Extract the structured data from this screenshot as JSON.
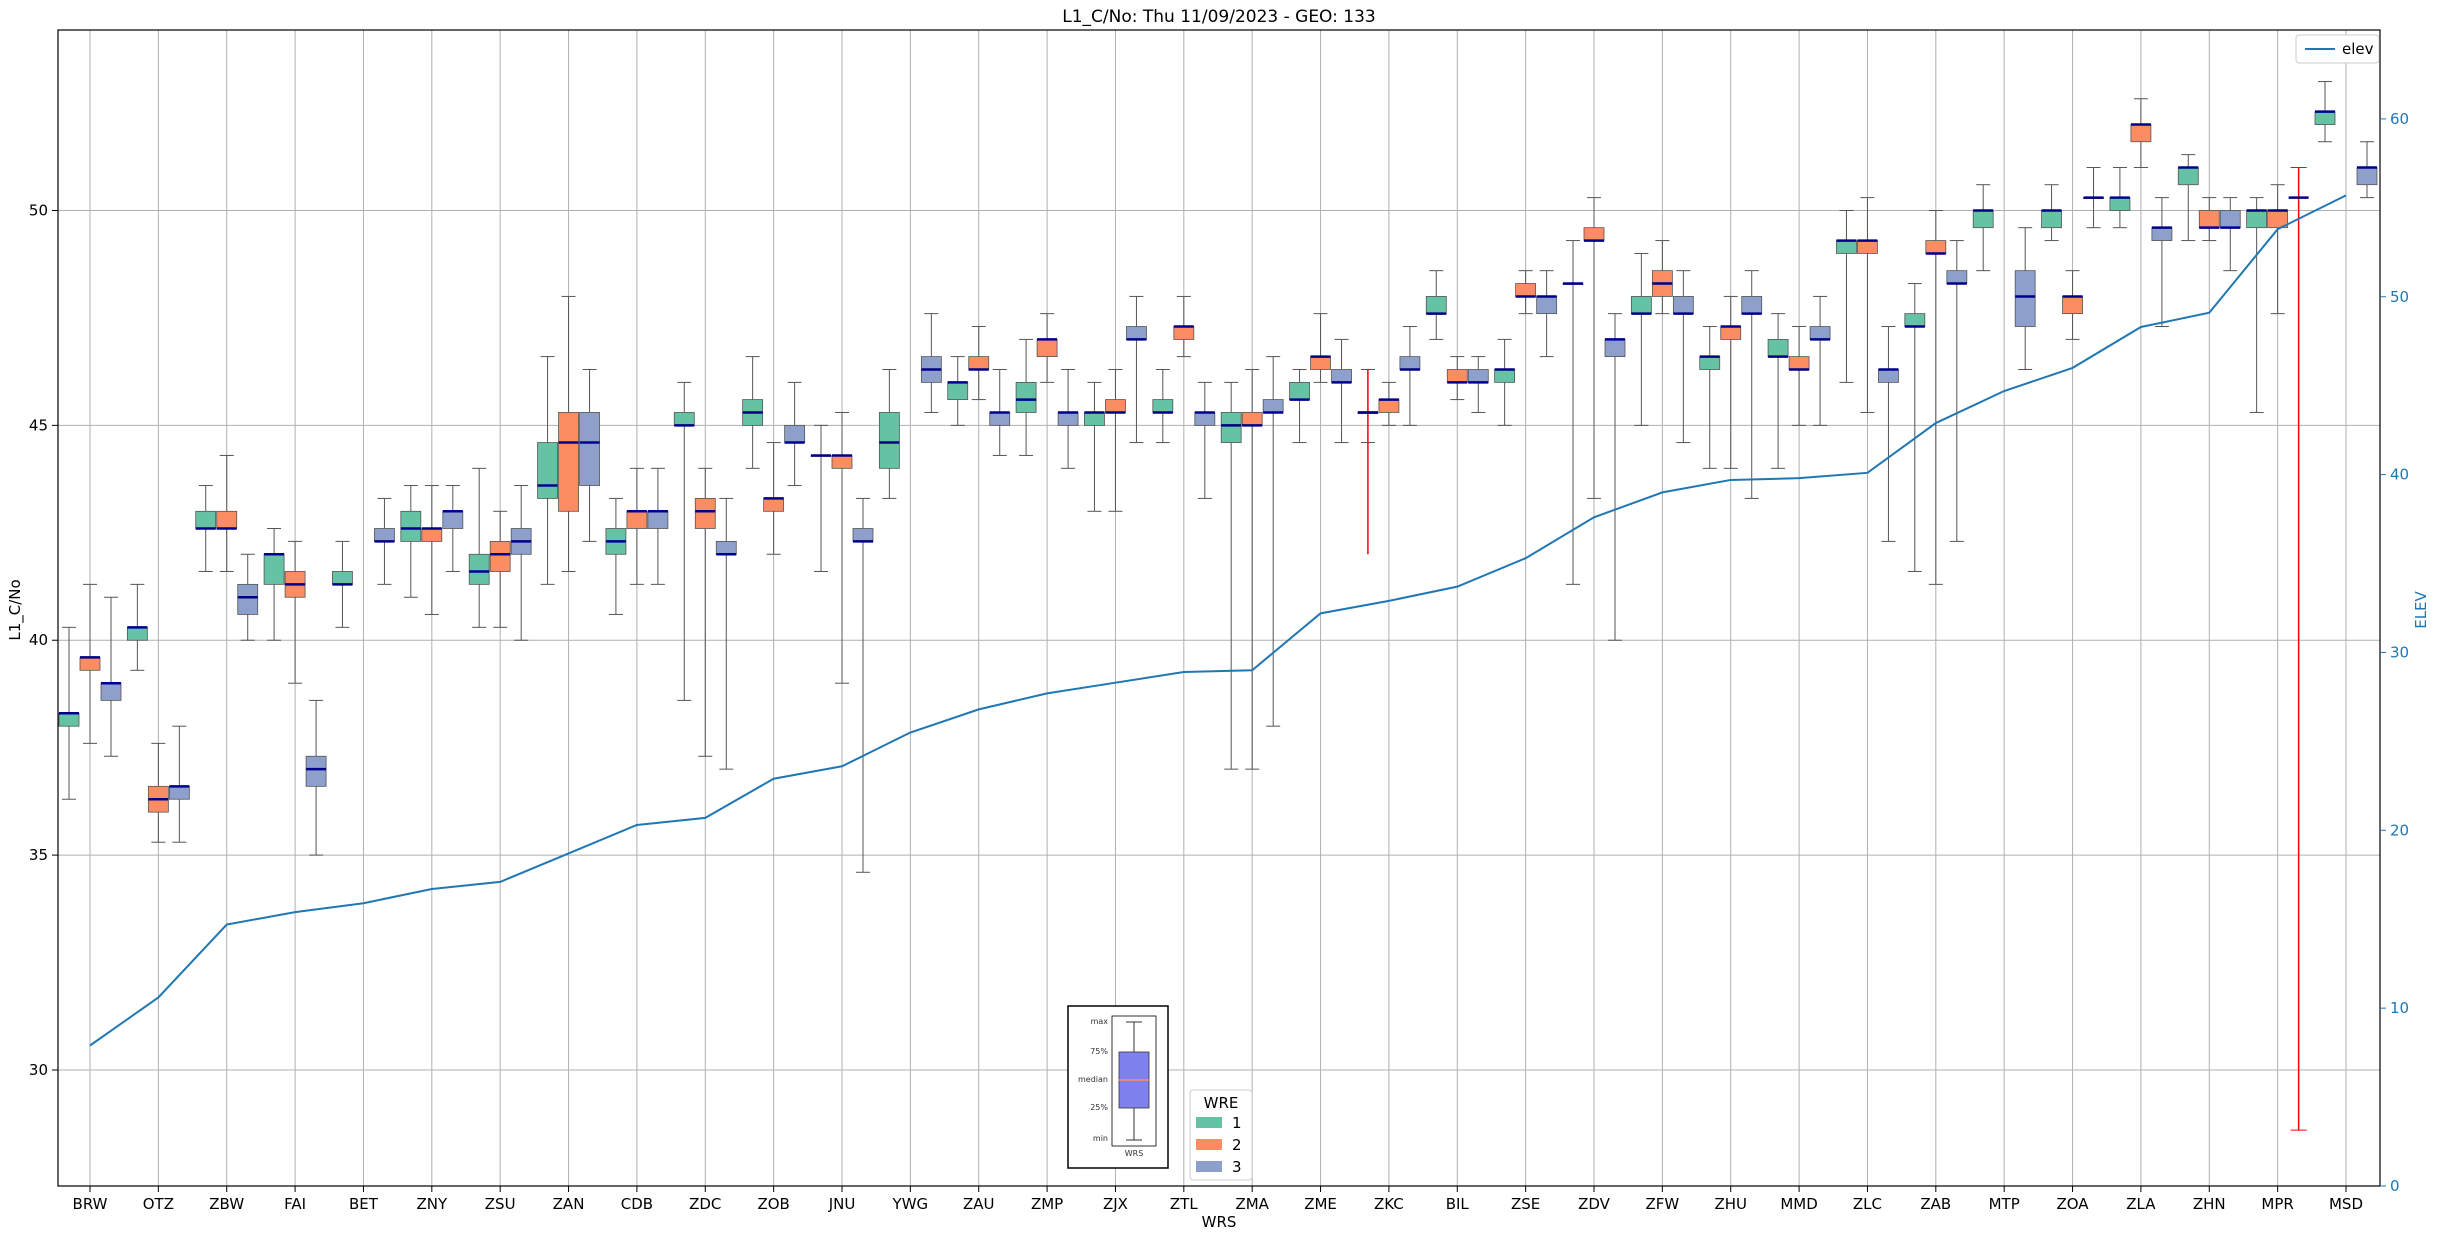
{
  "chart_data": {
    "type": "box",
    "title": "L1_C/No: Thu 11/09/2023 - GEO: 133",
    "xlabel": "WRS",
    "ylabel": "L1_C/No",
    "ylabel_right": "ELEV",
    "ylim": [
      27.3,
      54.2
    ],
    "ylim_right": [
      0,
      65
    ],
    "yticks": [
      30,
      35,
      40,
      45,
      50
    ],
    "yticks_right": [
      0,
      10,
      20,
      30,
      40,
      50,
      60
    ],
    "grid": true,
    "legend_line": {
      "name": "elev",
      "color": "#1f77b4",
      "placement": "top-right"
    },
    "legend_wre": {
      "title": "WRE",
      "entries": [
        {
          "label": "1",
          "color": "#66c2a5"
        },
        {
          "label": "2",
          "color": "#fc8d62"
        },
        {
          "label": "3",
          "color": "#8da0cb"
        }
      ],
      "placement": "bottom-center"
    },
    "inset": {
      "labels": [
        "max",
        "75%",
        "median",
        "25%",
        "min"
      ],
      "xlabel": "WRS"
    },
    "categories": [
      "BRW",
      "OTZ",
      "ZBW",
      "FAI",
      "BET",
      "ZNY",
      "ZSU",
      "ZAN",
      "CDB",
      "ZDC",
      "ZOB",
      "JNU",
      "YWG",
      "ZAU",
      "ZMP",
      "ZJX",
      "ZTL",
      "ZMA",
      "ZME",
      "ZKC",
      "BIL",
      "ZSE",
      "ZDV",
      "ZFW",
      "ZHU",
      "MMD",
      "ZLC",
      "ZAB",
      "MTP",
      "ZOA",
      "ZLA",
      "ZHN",
      "MPR",
      "MSD"
    ],
    "elev": [
      7.9,
      10.6,
      14.7,
      15.4,
      15.9,
      16.7,
      17.1,
      18.7,
      20.3,
      20.7,
      22.9,
      23.6,
      25.5,
      26.8,
      27.7,
      28.3,
      28.9,
      29.0,
      32.2,
      32.9,
      33.7,
      35.3,
      37.6,
      39.0,
      39.7,
      39.8,
      40.1,
      42.9,
      44.7,
      46.0,
      48.3,
      49.1,
      53.8,
      55.7
    ],
    "series": [
      {
        "name": "1",
        "boxes": [
          {
            "cat": "BRW",
            "min": 36.3,
            "q1": 38.0,
            "med": 38.3,
            "q3": 38.3,
            "max": 40.3
          },
          {
            "cat": "OTZ",
            "min": 39.3,
            "q1": 40.0,
            "med": 40.3,
            "q3": 40.3,
            "max": 41.3
          },
          {
            "cat": "ZBW",
            "min": 41.6,
            "q1": 42.6,
            "med": 42.6,
            "q3": 43.0,
            "max": 43.6
          },
          {
            "cat": "FAI",
            "min": 40.0,
            "q1": 41.3,
            "med": 42.0,
            "q3": 42.0,
            "max": 42.6
          },
          {
            "cat": "BET",
            "min": 40.3,
            "q1": 41.3,
            "med": 41.3,
            "q3": 41.6,
            "max": 42.3
          },
          {
            "cat": "ZNY",
            "min": 41.0,
            "q1": 42.3,
            "med": 42.6,
            "q3": 43.0,
            "max": 43.6
          },
          {
            "cat": "ZSU",
            "min": 40.3,
            "q1": 41.3,
            "med": 41.6,
            "q3": 42.0,
            "max": 44.0
          },
          {
            "cat": "ZAN",
            "min": 41.3,
            "q1": 43.3,
            "med": 43.6,
            "q3": 44.6,
            "max": 46.6
          },
          {
            "cat": "CDB",
            "min": 40.6,
            "q1": 42.0,
            "med": 42.3,
            "q3": 42.6,
            "max": 43.3
          },
          {
            "cat": "ZDC",
            "min": 38.6,
            "q1": 45.0,
            "med": 45.0,
            "q3": 45.3,
            "max": 46.0
          },
          {
            "cat": "ZOB",
            "min": 44.0,
            "q1": 45.0,
            "med": 45.3,
            "q3": 45.6,
            "max": 46.6
          },
          {
            "cat": "JNU",
            "min": 41.6,
            "q1": 44.3,
            "med": 44.3,
            "q3": 44.3,
            "max": 45.0
          },
          {
            "cat": "YWG",
            "min": 43.3,
            "q1": 44.0,
            "med": 44.6,
            "q3": 45.3,
            "max": 46.3
          },
          {
            "cat": "ZAU",
            "min": 45.0,
            "q1": 45.6,
            "med": 46.0,
            "q3": 46.0,
            "max": 46.6
          },
          {
            "cat": "ZMP",
            "min": 44.3,
            "q1": 45.3,
            "med": 45.6,
            "q3": 46.0,
            "max": 47.0
          },
          {
            "cat": "ZJX",
            "min": 43.0,
            "q1": 45.0,
            "med": 45.3,
            "q3": 45.3,
            "max": 46.0
          },
          {
            "cat": "ZTL",
            "min": 44.6,
            "q1": 45.3,
            "med": 45.3,
            "q3": 45.6,
            "max": 46.3
          },
          {
            "cat": "ZMA",
            "min": 37.0,
            "q1": 44.6,
            "med": 45.0,
            "q3": 45.3,
            "max": 46.0
          },
          {
            "cat": "ZME",
            "min": 44.6,
            "q1": 45.6,
            "med": 45.6,
            "q3": 46.0,
            "max": 46.3
          },
          {
            "cat": "ZKC",
            "min": 44.6,
            "q1": 45.3,
            "med": 45.3,
            "q3": 45.3,
            "max": 46.3
          },
          {
            "cat": "BIL",
            "min": 47.0,
            "q1": 47.6,
            "med": 47.6,
            "q3": 48.0,
            "max": 48.6
          },
          {
            "cat": "ZSE",
            "min": 45.0,
            "q1": 46.0,
            "med": 46.3,
            "q3": 46.3,
            "max": 47.0
          },
          {
            "cat": "ZDV",
            "min": 41.3,
            "q1": 48.3,
            "med": 48.3,
            "q3": 48.3,
            "max": 49.3
          },
          {
            "cat": "ZFW",
            "min": 45.0,
            "q1": 47.6,
            "med": 47.6,
            "q3": 48.0,
            "max": 49.0
          },
          {
            "cat": "ZHU",
            "min": 44.0,
            "q1": 46.3,
            "med": 46.6,
            "q3": 46.6,
            "max": 47.3
          },
          {
            "cat": "MMD",
            "min": 44.0,
            "q1": 46.6,
            "med": 46.6,
            "q3": 47.0,
            "max": 47.6
          },
          {
            "cat": "ZLC",
            "min": 46.0,
            "q1": 49.0,
            "med": 49.3,
            "q3": 49.3,
            "max": 50.0
          },
          {
            "cat": "ZAB",
            "min": 41.6,
            "q1": 47.3,
            "med": 47.3,
            "q3": 47.6,
            "max": 48.3
          },
          {
            "cat": "MTP",
            "min": 48.6,
            "q1": 49.6,
            "med": 50.0,
            "q3": 50.0,
            "max": 50.6
          },
          {
            "cat": "ZOA",
            "min": 49.3,
            "q1": 49.6,
            "med": 50.0,
            "q3": 50.0,
            "max": 50.6
          },
          {
            "cat": "ZLA",
            "min": 49.6,
            "q1": 50.0,
            "med": 50.3,
            "q3": 50.3,
            "max": 51.0
          },
          {
            "cat": "ZHN",
            "min": 49.3,
            "q1": 50.6,
            "med": 51.0,
            "q3": 51.0,
            "max": 51.3
          },
          {
            "cat": "MPR",
            "min": 45.3,
            "q1": 49.6,
            "med": 50.0,
            "q3": 50.0,
            "max": 50.3
          },
          {
            "cat": "MSD",
            "min": 51.6,
            "q1": 52.0,
            "med": 52.3,
            "q3": 52.3,
            "max": 53.0
          }
        ]
      },
      {
        "name": "2",
        "boxes": [
          {
            "cat": "BRW",
            "min": 37.6,
            "q1": 39.3,
            "med": 39.6,
            "q3": 39.6,
            "max": 41.3
          },
          {
            "cat": "OTZ",
            "min": 35.3,
            "q1": 36.0,
            "med": 36.3,
            "q3": 36.6,
            "max": 37.6
          },
          {
            "cat": "ZBW",
            "min": 41.6,
            "q1": 42.6,
            "med": 42.6,
            "q3": 43.0,
            "max": 44.3
          },
          {
            "cat": "FAI",
            "min": 39.0,
            "q1": 41.0,
            "med": 41.3,
            "q3": 41.6,
            "max": 42.3
          },
          {
            "cat": "ZNY",
            "min": 40.6,
            "q1": 42.3,
            "med": 42.6,
            "q3": 42.6,
            "max": 43.6
          },
          {
            "cat": "ZSU",
            "min": 40.3,
            "q1": 41.6,
            "med": 42.0,
            "q3": 42.3,
            "max": 43.0
          },
          {
            "cat": "ZAN",
            "min": 41.6,
            "q1": 43.0,
            "med": 44.6,
            "q3": 45.3,
            "max": 48.0
          },
          {
            "cat": "CDB",
            "min": 41.3,
            "q1": 42.6,
            "med": 43.0,
            "q3": 43.0,
            "max": 44.0
          },
          {
            "cat": "ZDC",
            "min": 37.3,
            "q1": 42.6,
            "med": 43.0,
            "q3": 43.3,
            "max": 44.0
          },
          {
            "cat": "ZOB",
            "min": 42.0,
            "q1": 43.0,
            "med": 43.3,
            "q3": 43.3,
            "max": 44.6
          },
          {
            "cat": "JNU",
            "min": 39.0,
            "q1": 44.0,
            "med": 44.3,
            "q3": 44.3,
            "max": 45.3
          },
          {
            "cat": "ZAU",
            "min": 45.6,
            "q1": 46.3,
            "med": 46.3,
            "q3": 46.6,
            "max": 47.3
          },
          {
            "cat": "ZMP",
            "min": 46.0,
            "q1": 46.6,
            "med": 47.0,
            "q3": 47.0,
            "max": 47.6
          },
          {
            "cat": "ZJX",
            "min": 43.0,
            "q1": 45.3,
            "med": 45.3,
            "q3": 45.6,
            "max": 46.3
          },
          {
            "cat": "ZTL",
            "min": 46.6,
            "q1": 47.0,
            "med": 47.3,
            "q3": 47.3,
            "max": 48.0
          },
          {
            "cat": "ZMA",
            "min": 37.0,
            "q1": 45.0,
            "med": 45.0,
            "q3": 45.3,
            "max": 46.3
          },
          {
            "cat": "ZME",
            "min": 46.0,
            "q1": 46.3,
            "med": 46.6,
            "q3": 46.6,
            "max": 47.6
          },
          {
            "cat": "ZKC",
            "min": 45.0,
            "q1": 45.3,
            "med": 45.6,
            "q3": 45.6,
            "max": 46.0
          },
          {
            "cat": "BIL",
            "min": 45.6,
            "q1": 46.0,
            "med": 46.0,
            "q3": 46.3,
            "max": 46.6
          },
          {
            "cat": "ZSE",
            "min": 47.6,
            "q1": 48.0,
            "med": 48.0,
            "q3": 48.3,
            "max": 48.6
          },
          {
            "cat": "ZDV",
            "min": 43.3,
            "q1": 49.3,
            "med": 49.3,
            "q3": 49.6,
            "max": 50.3
          },
          {
            "cat": "ZFW",
            "min": 47.6,
            "q1": 48.0,
            "med": 48.3,
            "q3": 48.6,
            "max": 49.3
          },
          {
            "cat": "ZHU",
            "min": 44.0,
            "q1": 47.0,
            "med": 47.3,
            "q3": 47.3,
            "max": 48.0
          },
          {
            "cat": "MMD",
            "min": 45.0,
            "q1": 46.3,
            "med": 46.3,
            "q3": 46.6,
            "max": 47.3
          },
          {
            "cat": "ZLC",
            "min": 45.3,
            "q1": 49.0,
            "med": 49.3,
            "q3": 49.3,
            "max": 50.3
          },
          {
            "cat": "ZAB",
            "min": 41.3,
            "q1": 49.0,
            "med": 49.0,
            "q3": 49.3,
            "max": 50.0
          },
          {
            "cat": "ZOA",
            "min": 47.0,
            "q1": 47.6,
            "med": 48.0,
            "q3": 48.0,
            "max": 48.6
          },
          {
            "cat": "ZLA",
            "min": 51.0,
            "q1": 51.6,
            "med": 52.0,
            "q3": 52.0,
            "max": 52.6
          },
          {
            "cat": "ZHN",
            "min": 49.3,
            "q1": 49.6,
            "med": 49.6,
            "q3": 50.0,
            "max": 50.3
          },
          {
            "cat": "MPR",
            "min": 47.6,
            "q1": 49.6,
            "med": 50.0,
            "q3": 50.0,
            "max": 50.6
          },
          {
            "cat": "MPR",
            "min": 28.6,
            "q1": 50.3,
            "med": 50.3,
            "q3": 50.3,
            "max": 51.0,
            "special": true
          }
        ]
      },
      {
        "name": "3",
        "boxes": [
          {
            "cat": "BRW",
            "min": 37.3,
            "q1": 38.6,
            "med": 39.0,
            "q3": 39.0,
            "max": 41.0
          },
          {
            "cat": "OTZ",
            "min": 35.3,
            "q1": 36.3,
            "med": 36.6,
            "q3": 36.6,
            "max": 38.0
          },
          {
            "cat": "ZBW",
            "min": 40.0,
            "q1": 40.6,
            "med": 41.0,
            "q3": 41.3,
            "max": 42.0
          },
          {
            "cat": "FAI",
            "min": 35.0,
            "q1": 36.6,
            "med": 37.0,
            "q3": 37.3,
            "max": 38.6
          },
          {
            "cat": "BET",
            "min": 41.3,
            "q1": 42.3,
            "med": 42.3,
            "q3": 42.6,
            "max": 43.3
          },
          {
            "cat": "ZNY",
            "min": 41.6,
            "q1": 42.6,
            "med": 43.0,
            "q3": 43.0,
            "max": 43.6
          },
          {
            "cat": "ZSU",
            "min": 40.0,
            "q1": 42.0,
            "med": 42.3,
            "q3": 42.6,
            "max": 43.6
          },
          {
            "cat": "ZAN",
            "min": 42.3,
            "q1": 43.6,
            "med": 44.6,
            "q3": 45.3,
            "max": 46.3
          },
          {
            "cat": "CDB",
            "min": 41.3,
            "q1": 42.6,
            "med": 43.0,
            "q3": 43.0,
            "max": 44.0
          },
          {
            "cat": "ZDC",
            "min": 37.0,
            "q1": 42.0,
            "med": 42.0,
            "q3": 42.3,
            "max": 43.3
          },
          {
            "cat": "ZOB",
            "min": 43.6,
            "q1": 44.6,
            "med": 44.6,
            "q3": 45.0,
            "max": 46.0
          },
          {
            "cat": "JNU",
            "min": 34.6,
            "q1": 42.3,
            "med": 42.3,
            "q3": 42.6,
            "max": 43.3
          },
          {
            "cat": "YWG",
            "min": 45.3,
            "q1": 46.0,
            "med": 46.3,
            "q3": 46.6,
            "max": 47.6
          },
          {
            "cat": "ZAU",
            "min": 44.3,
            "q1": 45.0,
            "med": 45.3,
            "q3": 45.3,
            "max": 46.3
          },
          {
            "cat": "ZMP",
            "min": 44.0,
            "q1": 45.0,
            "med": 45.3,
            "q3": 45.3,
            "max": 46.3
          },
          {
            "cat": "ZJX",
            "min": 44.6,
            "q1": 47.0,
            "med": 47.0,
            "q3": 47.3,
            "max": 48.0
          },
          {
            "cat": "ZTL",
            "min": 43.3,
            "q1": 45.0,
            "med": 45.3,
            "q3": 45.3,
            "max": 46.0
          },
          {
            "cat": "ZMA",
            "min": 38.0,
            "q1": 45.3,
            "med": 45.3,
            "q3": 45.6,
            "max": 46.6
          },
          {
            "cat": "ZME",
            "min": 44.6,
            "q1": 46.0,
            "med": 46.0,
            "q3": 46.3,
            "max": 47.0
          },
          {
            "cat": "ZKC",
            "min": 45.0,
            "q1": 46.3,
            "med": 46.3,
            "q3": 46.6,
            "max": 47.3
          },
          {
            "cat": "BIL",
            "min": 45.3,
            "q1": 46.0,
            "med": 46.0,
            "q3": 46.3,
            "max": 46.6
          },
          {
            "cat": "ZSE",
            "min": 46.6,
            "q1": 47.6,
            "med": 48.0,
            "q3": 48.0,
            "max": 48.6
          },
          {
            "cat": "ZDV",
            "min": 40.0,
            "q1": 46.6,
            "med": 47.0,
            "q3": 47.0,
            "max": 47.6
          },
          {
            "cat": "ZFW",
            "min": 44.6,
            "q1": 47.6,
            "med": 47.6,
            "q3": 48.0,
            "max": 48.6
          },
          {
            "cat": "ZHU",
            "min": 43.3,
            "q1": 47.6,
            "med": 47.6,
            "q3": 48.0,
            "max": 48.6
          },
          {
            "cat": "MMD",
            "min": 45.0,
            "q1": 47.0,
            "med": 47.0,
            "q3": 47.3,
            "max": 48.0
          },
          {
            "cat": "ZLC",
            "min": 42.3,
            "q1": 46.0,
            "med": 46.3,
            "q3": 46.3,
            "max": 47.3
          },
          {
            "cat": "ZAB",
            "min": 42.3,
            "q1": 48.3,
            "med": 48.3,
            "q3": 48.6,
            "max": 49.3
          },
          {
            "cat": "MTP",
            "min": 46.3,
            "q1": 47.3,
            "med": 48.0,
            "q3": 48.6,
            "max": 49.6
          },
          {
            "cat": "ZOA",
            "min": 49.6,
            "q1": 50.3,
            "med": 50.3,
            "q3": 50.3,
            "max": 51.0
          },
          {
            "cat": "ZLA",
            "min": 47.3,
            "q1": 49.3,
            "med": 49.6,
            "q3": 49.6,
            "max": 50.3
          },
          {
            "cat": "ZHN",
            "min": 48.6,
            "q1": 49.6,
            "med": 49.6,
            "q3": 50.0,
            "max": 50.3
          },
          {
            "cat": "MSD",
            "min": 50.3,
            "q1": 50.6,
            "med": 51.0,
            "q3": 51.0,
            "max": 51.6
          }
        ]
      }
    ],
    "special_series": [
      {
        "cat": "ZKC",
        "min": 42.0,
        "max": 46.3,
        "med": 45.3,
        "color": "red"
      }
    ]
  },
  "colors": {
    "wre1": "#66c2a5",
    "wre2": "#fc8d62",
    "wre3": "#8da0cb",
    "median": "#00008b",
    "elev": "#1f77b4",
    "special": "#ff0000"
  }
}
